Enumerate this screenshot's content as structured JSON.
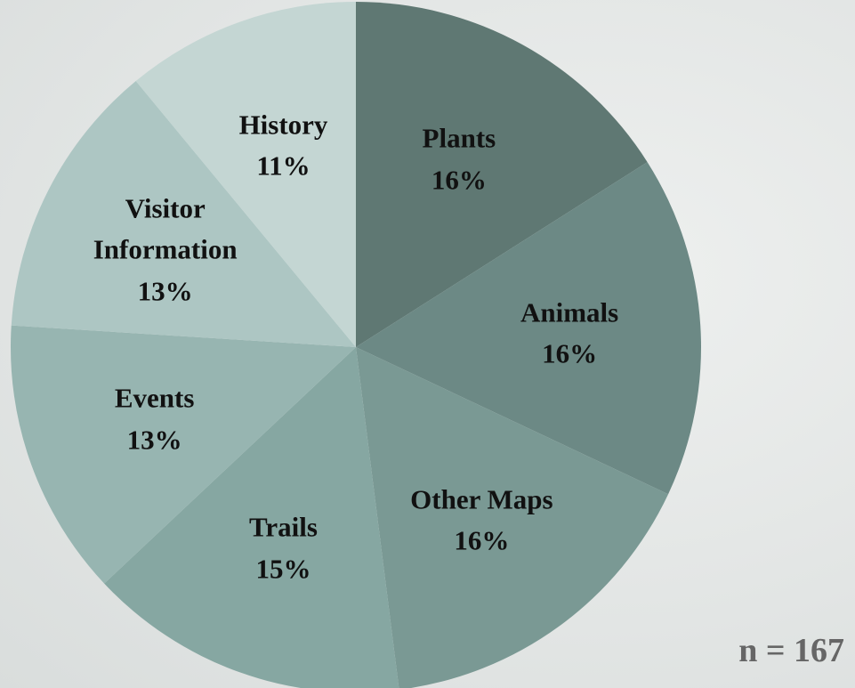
{
  "chart_data": {
    "type": "pie",
    "categories": [
      "Plants",
      "Animals",
      "Other Maps",
      "Trails",
      "Events",
      "Visitor Information",
      "History"
    ],
    "values": [
      16,
      16,
      16,
      15,
      13,
      13,
      11
    ],
    "value_labels": [
      "16%",
      "16%",
      "16%",
      "15%",
      "13%",
      "13%",
      "11%"
    ],
    "colors": [
      "#5f7873",
      "#6c8985",
      "#7a9994",
      "#86a7a2",
      "#97b5b1",
      "#adc6c3",
      "#c4d6d3"
    ],
    "annotation": "n = 167"
  }
}
